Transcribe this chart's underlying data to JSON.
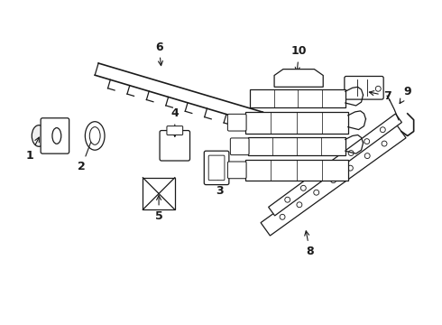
{
  "background_color": "#ffffff",
  "line_color": "#1a1a1a",
  "fig_width": 4.9,
  "fig_height": 3.6,
  "dpi": 100,
  "components": {
    "label_fontsize": 9,
    "label_fontweight": "bold"
  }
}
